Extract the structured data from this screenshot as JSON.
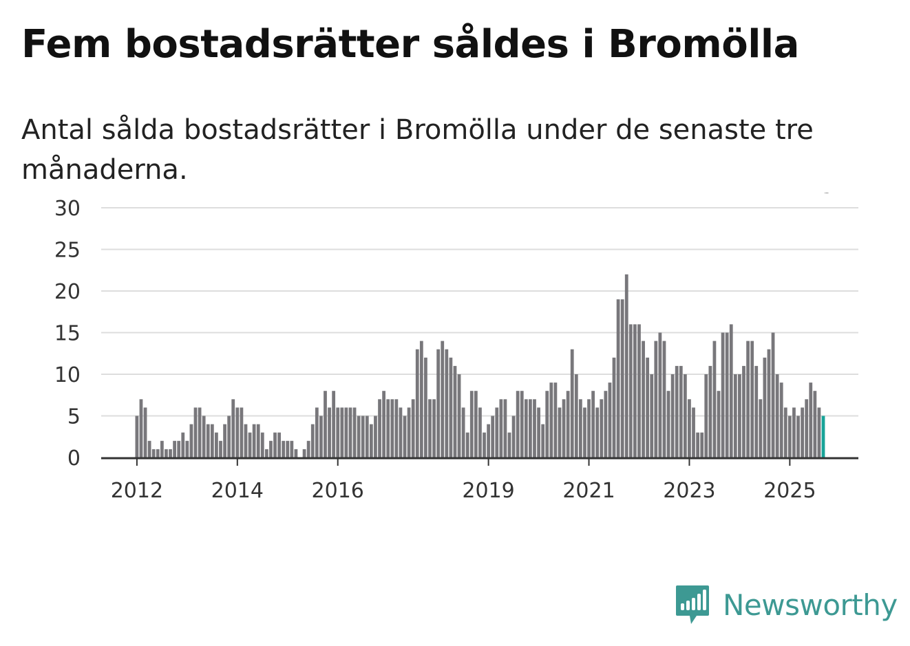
{
  "title": "Fem bostadsrätter såldes i Bromölla",
  "subtitle": "Antal sålda bostadsrätter i Bromölla under de senaste tre månaderna.",
  "brand": {
    "name": "Newsworthy",
    "color": "#3d9993"
  },
  "colors": {
    "bar": "#78777b",
    "highlight": "#17a398",
    "grid": "#dddddd",
    "axis": "#333333",
    "text": "#333333"
  },
  "chart_data": {
    "type": "bar",
    "title": "Fem bostadsrätter såldes i Bromölla",
    "xlabel": "",
    "ylabel": "",
    "ylim": [
      0,
      30
    ],
    "yticks": [
      0,
      5,
      10,
      15,
      20,
      25,
      30
    ],
    "start": "2012-01",
    "xticks": [
      {
        "label": "2012",
        "index": 0
      },
      {
        "label": "2014",
        "index": 24
      },
      {
        "label": "2016",
        "index": 48
      },
      {
        "label": "2019",
        "index": 84
      },
      {
        "label": "2021",
        "index": 108
      },
      {
        "label": "2023",
        "index": 132
      },
      {
        "label": "2025",
        "index": 156
      }
    ],
    "annotation": {
      "label": "5",
      "index": 165
    },
    "values": [
      5,
      7,
      6,
      2,
      1,
      1,
      2,
      1,
      1,
      2,
      2,
      3,
      2,
      4,
      6,
      6,
      5,
      4,
      4,
      3,
      2,
      4,
      5,
      7,
      6,
      6,
      4,
      3,
      4,
      4,
      3,
      1,
      2,
      3,
      3,
      2,
      2,
      2,
      1,
      0,
      1,
      2,
      4,
      6,
      5,
      8,
      6,
      8,
      6,
      6,
      6,
      6,
      6,
      5,
      5,
      5,
      4,
      5,
      7,
      8,
      7,
      7,
      7,
      6,
      5,
      6,
      7,
      13,
      14,
      12,
      7,
      7,
      13,
      14,
      13,
      12,
      11,
      10,
      6,
      3,
      8,
      8,
      6,
      3,
      4,
      5,
      6,
      7,
      7,
      3,
      5,
      8,
      8,
      7,
      7,
      7,
      6,
      4,
      8,
      9,
      9,
      6,
      7,
      8,
      13,
      10,
      7,
      6,
      7,
      8,
      6,
      7,
      8,
      9,
      12,
      19,
      19,
      22,
      16,
      16,
      16,
      14,
      12,
      10,
      14,
      15,
      14,
      8,
      10,
      11,
      11,
      10,
      7,
      6,
      3,
      3,
      10,
      11,
      14,
      8,
      15,
      15,
      16,
      10,
      10,
      11,
      14,
      14,
      11,
      7,
      12,
      13,
      15,
      10,
      9,
      6,
      5,
      6,
      5,
      6,
      7,
      9,
      8,
      6,
      5
    ]
  }
}
